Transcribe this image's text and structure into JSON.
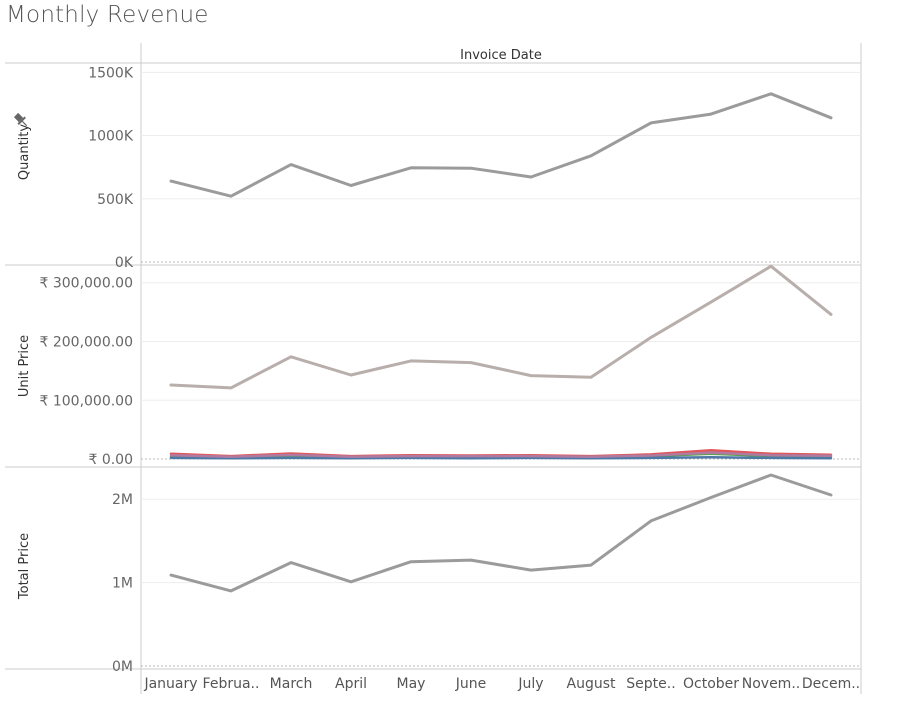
{
  "title": "Monthly Revenue",
  "column_header": "Invoice Date",
  "colors": {
    "quantity_line": "#9b9b9b",
    "unit_price_line": "#b8aeab",
    "total_price_line": "#9b9b9b",
    "unit_price_small_lines": [
      "#e15759",
      "#59a14f",
      "#4e79a7",
      "#b07aa1"
    ],
    "gridline": "#ededed",
    "border": "#cccccc"
  },
  "pin_icon": "pin-icon",
  "chart_data": {
    "type": "line",
    "categories": [
      "January",
      "February",
      "March",
      "April",
      "May",
      "June",
      "July",
      "August",
      "September",
      "October",
      "November",
      "December"
    ],
    "x_tick_labels": [
      "January",
      "Februa..",
      "March",
      "April",
      "May",
      "June",
      "July",
      "August",
      "Septe..",
      "October",
      "Novem..",
      "Decem.."
    ],
    "panes": [
      {
        "ylabel": "Quantity",
        "ylim": [
          0,
          1550000
        ],
        "yticks": [
          0,
          500000,
          1000000,
          1500000
        ],
        "ytick_labels": [
          "0K",
          "500K",
          "1000K",
          "1500K"
        ],
        "series": [
          {
            "values": [
              640000,
              520000,
              770000,
              605000,
              745000,
              742000,
              672000,
              840000,
              1100000,
              1170000,
              1330000,
              1140000
            ]
          }
        ]
      },
      {
        "ylabel": "Unit Price",
        "ylim": [
          -5000,
          325000
        ],
        "yticks": [
          0,
          100000,
          200000,
          300000
        ],
        "ytick_labels": [
          "₹ 0.00",
          "₹ 100,000.00",
          "₹ 200,000.00",
          "₹ 300,000.00"
        ],
        "series": [
          {
            "values": [
              126000,
              121000,
              174000,
              143000,
              167000,
              164000,
              142000,
              139000,
              207000,
              267000,
              328000,
              246000
            ]
          },
          {
            "values": [
              9000,
              5000,
              9500,
              5000,
              6500,
              6000,
              6500,
              5000,
              8000,
              15000,
              9000,
              7500
            ]
          },
          {
            "values": [
              4000,
              3000,
              4500,
              3000,
              3500,
              3500,
              3500,
              3000,
              5000,
              9000,
              5000,
              4000
            ]
          },
          {
            "values": [
              2000,
              1500,
              2000,
              1500,
              2000,
              1500,
              2000,
              1500,
              2000,
              3000,
              2000,
              1500
            ]
          },
          {
            "values": [
              6500,
              4000,
              7000,
              4000,
              5000,
              5000,
              5000,
              4000,
              6000,
              11000,
              6500,
              5500
            ]
          }
        ]
      },
      {
        "ylabel": "Total Price",
        "ylim": [
          0,
          2350000
        ],
        "yticks": [
          0,
          1000000,
          2000000
        ],
        "ytick_labels": [
          "0M",
          "1M",
          "2M"
        ],
        "series": [
          {
            "values": [
              1090000,
              900000,
              1240000,
              1010000,
              1250000,
              1270000,
              1150000,
              1210000,
              1740000,
              2020000,
              2290000,
              2050000
            ]
          }
        ]
      }
    ]
  }
}
